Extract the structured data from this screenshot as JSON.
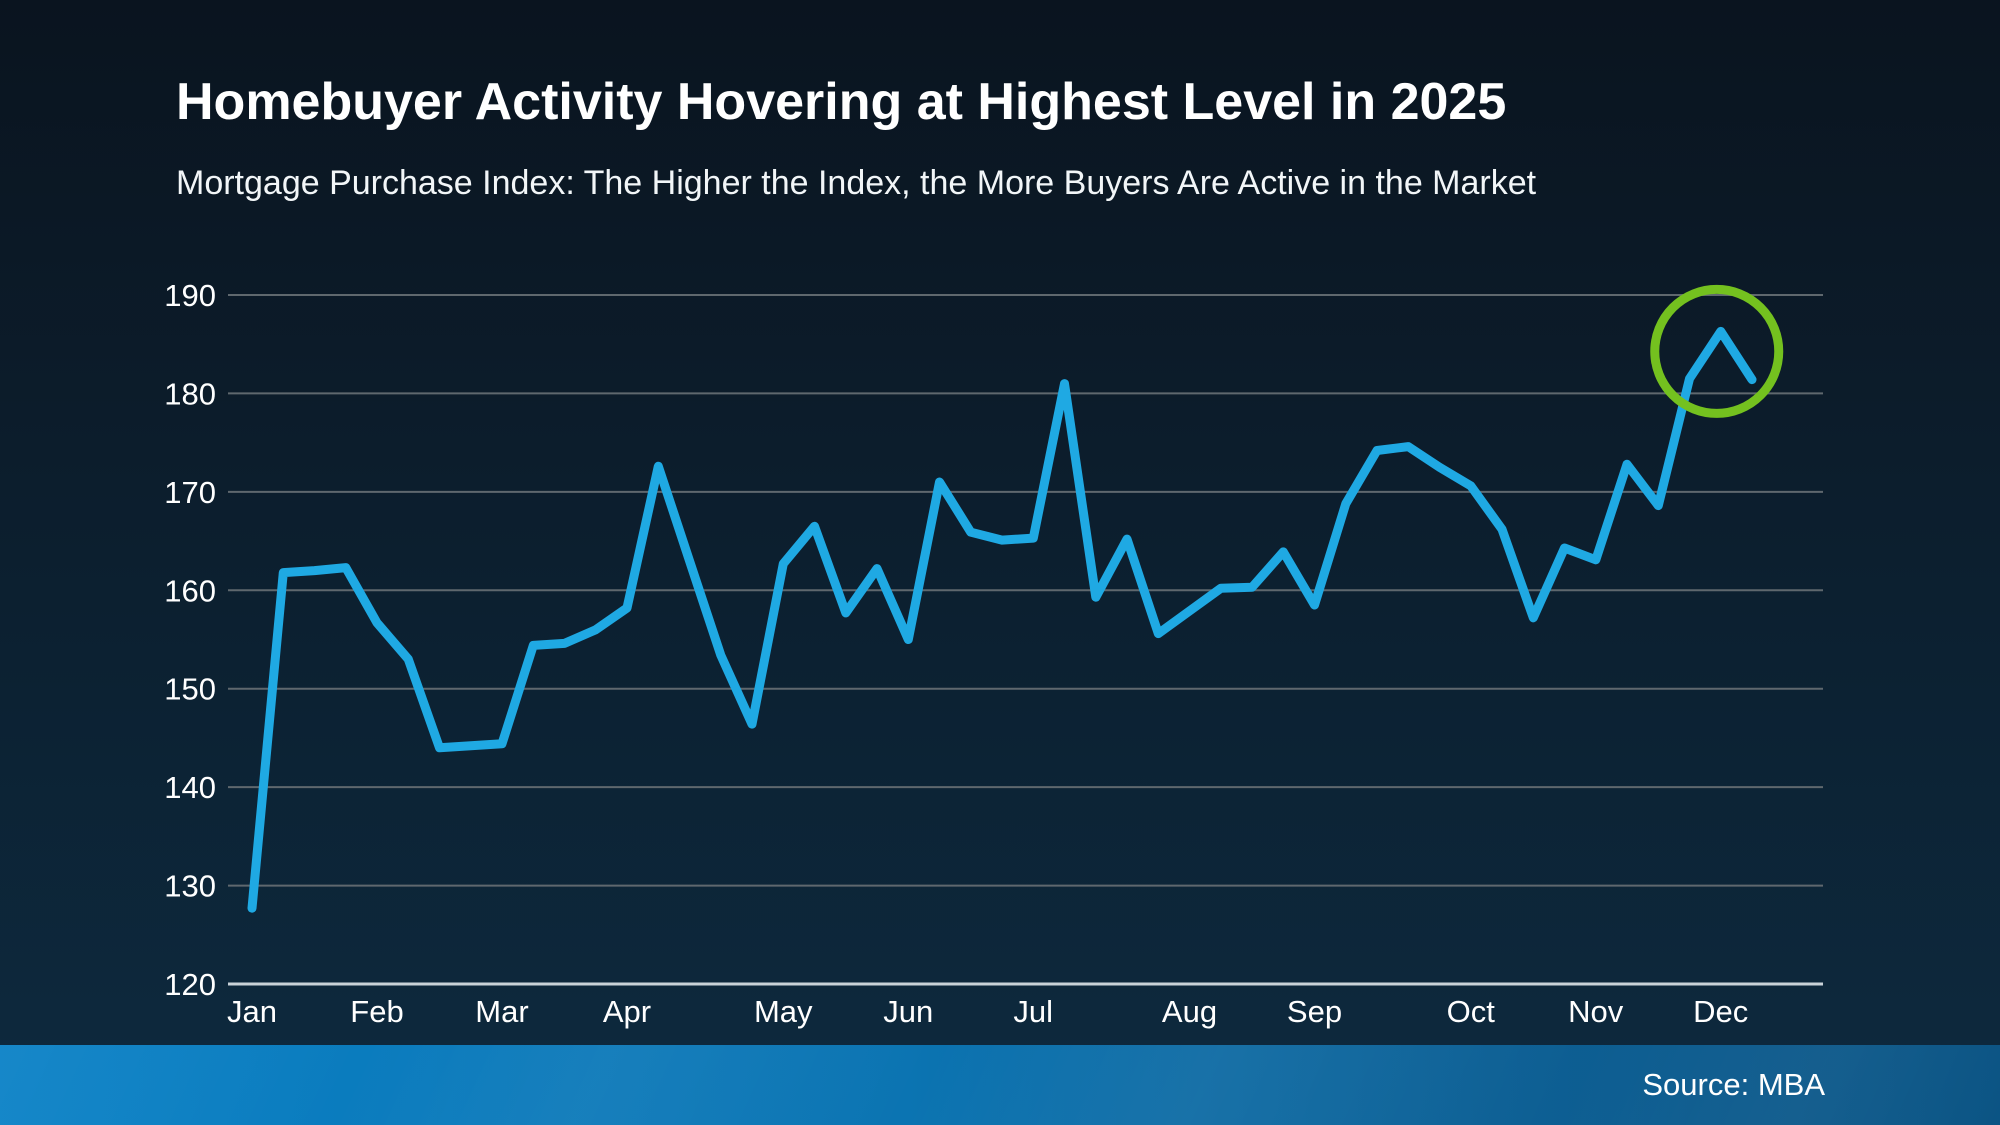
{
  "header": {
    "title": "Homebuyer Activity Hovering at Highest Level in 2025",
    "subtitle": "Mortgage Purchase Index: The Higher the Index, the More Buyers Are Active in the Market"
  },
  "footer": {
    "source_label": "Source: MBA"
  },
  "colors": {
    "background_top": "#0a141f",
    "background_bottom": "#0d2a3f",
    "title_text": "#ffffff",
    "line": "#1fa9e3",
    "gridline": "#5f686e",
    "axis_baseline": "#c9d2d8",
    "tick_text": "#ffffff",
    "highlight_circle": "#74c11f",
    "footer_bar_left": "#0a81c6",
    "footer_bar_right": "#0b5484"
  },
  "chart_data": {
    "type": "line",
    "title": "Homebuyer Activity Hovering at Highest Level in 2025",
    "subtitle": "Mortgage Purchase Index: The Higher the Index, the More Buyers Are Active in the Market",
    "xlabel": "",
    "ylabel": "",
    "x_unit": "week",
    "ylim": [
      120,
      190
    ],
    "yticks": [
      120,
      130,
      140,
      150,
      160,
      170,
      180,
      190
    ],
    "grid": true,
    "legend": "none",
    "categories": [
      "Jan",
      "Feb",
      "Mar",
      "Apr",
      "May",
      "Jun",
      "Jul",
      "Aug",
      "Sep",
      "Oct",
      "Nov",
      "Dec"
    ],
    "month_week_index": [
      0,
      4,
      8,
      12,
      17,
      21,
      25,
      30,
      34,
      39,
      43,
      47
    ],
    "series": [
      {
        "name": "Mortgage Purchase Index (weekly)",
        "values": [
          127.7,
          161.8,
          162.0,
          162.3,
          156.7,
          153.0,
          144.0,
          144.2,
          144.4,
          154.4,
          154.6,
          156.0,
          158.2,
          172.6,
          163.0,
          153.4,
          146.4,
          162.7,
          166.5,
          157.7,
          162.2,
          155.0,
          171.0,
          165.9,
          165.1,
          165.3,
          181.0,
          159.3,
          165.2,
          155.6,
          157.9,
          160.2,
          160.3,
          163.9,
          158.5,
          168.8,
          174.2,
          174.6,
          172.5,
          170.6,
          166.2,
          157.2,
          164.3,
          163.1,
          172.8,
          168.6,
          181.5,
          186.3,
          181.4
        ]
      }
    ],
    "annotation": {
      "shape": "circle",
      "meaning": "highlights the December peak, the highest level in 2025",
      "week_index": 47,
      "value": 186.3
    }
  }
}
